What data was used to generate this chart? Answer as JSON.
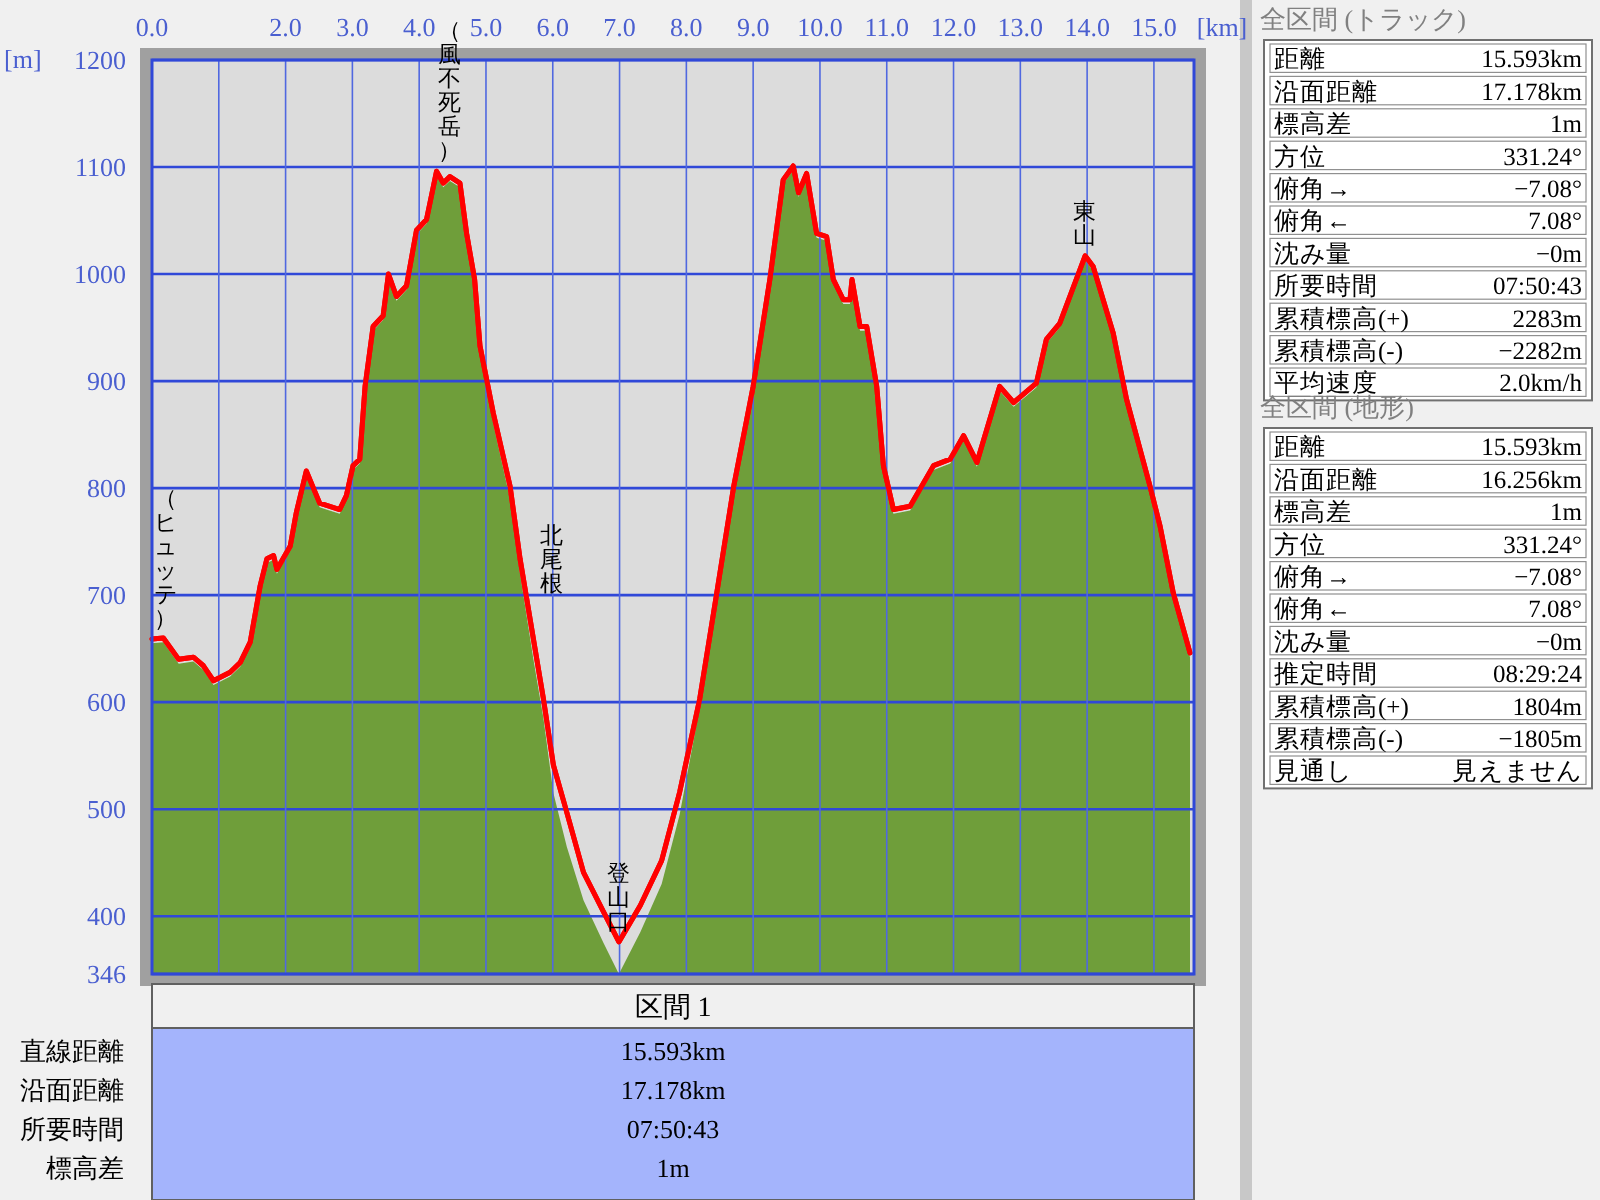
{
  "chart_data": [
    {
      "type": "area",
      "xlabel": "[km]",
      "ylabel": "[m]",
      "xlim": [
        0,
        15.6
      ],
      "ylim": [
        346,
        1200
      ],
      "xticks": [
        {
          "value": 0,
          "label": "0.0"
        },
        {
          "value": 1,
          "label": null
        },
        {
          "value": 2,
          "label": "2.0"
        },
        {
          "value": 3,
          "label": "3.0"
        },
        {
          "value": 4,
          "label": "4.0"
        },
        {
          "value": 5,
          "label": "5.0"
        },
        {
          "value": 6,
          "label": "6.0"
        },
        {
          "value": 7,
          "label": "7.0"
        },
        {
          "value": 8,
          "label": "8.0"
        },
        {
          "value": 9,
          "label": "9.0"
        },
        {
          "value": 10,
          "label": "10.0"
        },
        {
          "value": 11,
          "label": "11.0"
        },
        {
          "value": 12,
          "label": "12.0"
        },
        {
          "value": 13,
          "label": "13.0"
        },
        {
          "value": 14,
          "label": "14.0"
        },
        {
          "value": 15,
          "label": "15.0"
        }
      ],
      "yticks": [
        346,
        400,
        500,
        600,
        700,
        800,
        900,
        1000,
        1100,
        1200
      ],
      "grid": true,
      "x": [
        0,
        0.17,
        0.4,
        0.62,
        0.77,
        0.92,
        1.17,
        1.32,
        1.47,
        1.62,
        1.72,
        1.82,
        1.87,
        2.07,
        2.16,
        2.31,
        2.51,
        2.81,
        2.91,
        3.01,
        3.11,
        3.19,
        3.31,
        3.46,
        3.54,
        3.66,
        3.81,
        3.96,
        4.11,
        4.26,
        4.36,
        4.46,
        4.61,
        4.71,
        4.83,
        4.91,
        5.11,
        5.36,
        5.51,
        5.71,
        5.86,
        6.01,
        6.21,
        6.46,
        6.76,
        6.99,
        7.31,
        7.63,
        7.9,
        8.2,
        8.45,
        8.71,
        9.0,
        9.25,
        9.45,
        9.6,
        9.68,
        9.8,
        9.95,
        10.1,
        10.2,
        10.35,
        10.45,
        10.48,
        10.6,
        10.7,
        10.85,
        10.95,
        11.1,
        11.35,
        11.7,
        11.95,
        12.15,
        12.35,
        12.69,
        12.9,
        13.24,
        13.39,
        13.59,
        13.97,
        14.09,
        14.39,
        14.59,
        14.94,
        15.09,
        15.29,
        15.54
      ],
      "series": [
        {
          "type": "area",
          "color": "#6f9e3a",
          "values": [
            655,
            656,
            636,
            638,
            630,
            616,
            624,
            633,
            652,
            705,
            730,
            733,
            720,
            742,
            773,
            812,
            782,
            776,
            789,
            817,
            823,
            891,
            947,
            957,
            996,
            975,
            985,
            1037,
            1047,
            1092,
            1081,
            1087,
            1081,
            1034,
            990,
            925,
            860,
            790,
            720,
            640,
            585,
            515,
            465,
            415,
            375,
            346,
            385,
            430,
            495,
            595,
            690,
            795,
            890,
            990,
            1084,
            1097,
            1072,
            1090,
            1034,
            1031,
            991,
            972,
            972,
            991,
            947,
            947,
            891,
            817,
            776,
            779,
            817,
            823,
            845,
            820,
            891,
            876,
            894,
            935,
            950,
            1013,
            1003,
            941,
            879,
            798,
            761,
            698,
            642
          ]
        },
        {
          "type": "line",
          "color": "#ff0000",
          "values": [
            659,
            660,
            640,
            642,
            634,
            620,
            628,
            637,
            656,
            709,
            734,
            737,
            724,
            746,
            777,
            816,
            786,
            780,
            793,
            821,
            827,
            895,
            951,
            961,
            1000,
            979,
            989,
            1041,
            1051,
            1096,
            1085,
            1091,
            1085,
            1038,
            995,
            933,
            870,
            802,
            734,
            659,
            603,
            541,
            497,
            441,
            404,
            376,
            410,
            452,
            516,
            603,
            700,
            802,
            895,
            995,
            1088,
            1101,
            1076,
            1094,
            1038,
            1035,
            995,
            976,
            976,
            995,
            951,
            951,
            895,
            821,
            780,
            783,
            821,
            827,
            849,
            824,
            895,
            880,
            898,
            939,
            954,
            1017,
            1007,
            945,
            883,
            802,
            765,
            702,
            646
          ]
        }
      ],
      "annotations": [
        {
          "text": "（ヒュッテ）",
          "x": 0,
          "y": 659
        },
        {
          "text": "（風不死岳）",
          "x": 4.46,
          "y": 1096
        },
        "北尾根",
        {
          "text": "登山口",
          "x": 6.99,
          "y": 376
        },
        {
          "text": "東山",
          "x": 13.97,
          "y": 1017
        }
      ]
    },
    {
      "type": "other",
      "title": "全区間 (トラック)",
      "annotations": [
        "距離",
        "15.593km",
        "沿面距離",
        "17.178km",
        "標高差",
        "1m",
        "方位",
        "331.24°",
        "俯角→",
        "−7.08°",
        "俯角←",
        "7.08°",
        "沈み量",
        "−0m",
        "所要時間",
        "07:50:43",
        "累積標高(+)",
        "2283m",
        "累積標高(-)",
        "−2282m",
        "平均速度",
        "2.0km/h"
      ]
    },
    {
      "type": "other",
      "title": "全区間 (地形)",
      "annotations": [
        "距離",
        "15.593km",
        "沿面距離",
        "16.256km",
        "標高差",
        "1m",
        "方位",
        "331.24°",
        "俯角→",
        "−7.08°",
        "俯角←",
        "7.08°",
        "沈み量",
        "−0m",
        "推定時間",
        "08:29:24",
        "累積標高(+)",
        "1804m",
        "累積標高(-)",
        "−1805m",
        "見通し",
        "見えません"
      ]
    },
    {
      "type": "other",
      "title": "区間 1",
      "annotations": [
        "直線距離",
        "15.593km",
        "沿面距離",
        "17.178km",
        "所要時間",
        "07:50:43",
        "標高差",
        "1m"
      ]
    }
  ]
}
